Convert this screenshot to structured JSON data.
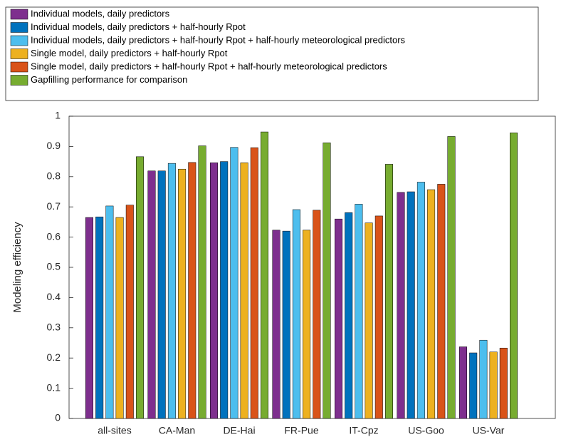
{
  "chart_data": {
    "type": "bar",
    "y_label": "Modeling efficiency",
    "categories": [
      "all-sites",
      "CA-Man",
      "DE-Hai",
      "FR-Pue",
      "IT-Cpz",
      "US-Goo",
      "US-Var"
    ],
    "series": [
      {
        "name": "Individual models, daily predictors",
        "color": "#7e2f8e",
        "values": [
          0.665,
          0.819,
          0.846,
          0.623,
          0.66,
          0.748,
          0.237
        ]
      },
      {
        "name": "Individual models, daily predictors + half-hourly Rpot",
        "color": "#0072bd",
        "values": [
          0.667,
          0.819,
          0.85,
          0.62,
          0.681,
          0.75,
          0.217
        ]
      },
      {
        "name": "Individual models, daily predictors + half-hourly Rpot + half-hourly meteorological predictors",
        "color": "#4dbeee",
        "values": [
          0.703,
          0.844,
          0.897,
          0.691,
          0.709,
          0.782,
          0.259
        ]
      },
      {
        "name": "Single model, daily predictors + half-hourly Rpot",
        "color": "#edb120",
        "values": [
          0.665,
          0.825,
          0.846,
          0.623,
          0.647,
          0.757,
          0.22
        ]
      },
      {
        "name": "Single model, daily predictors + half-hourly Rpot + half-hourly meteorological predictors",
        "color": "#d95319",
        "values": [
          0.706,
          0.847,
          0.896,
          0.689,
          0.67,
          0.775,
          0.233
        ]
      },
      {
        "name": "Gapfilling performance for comparison",
        "color": "#77ac30",
        "values": [
          0.866,
          0.902,
          0.948,
          0.912,
          0.841,
          0.933,
          0.945
        ]
      }
    ],
    "ylim": [
      0,
      1
    ],
    "yticks": [
      0,
      0.1,
      0.2,
      0.3,
      0.4,
      0.5,
      0.6,
      0.7,
      0.8,
      0.9,
      1
    ],
    "grid": false
  }
}
